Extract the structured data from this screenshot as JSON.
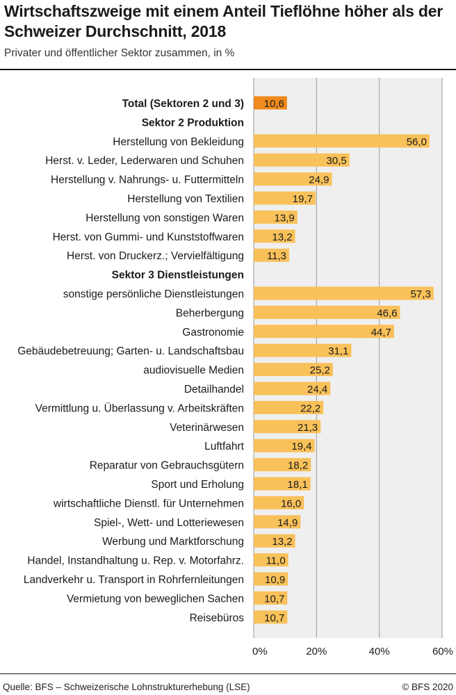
{
  "title": "Wirtschaftszweige mit einem Anteil Tieflöhne höher als der Schweizer Durchschnitt, 2018",
  "subtitle": "Privater und öffentlicher Sektor zusammen, in %",
  "footer": {
    "source": "Quelle: BFS – Schweizerische Lohnstrukturerhebung (LSE)",
    "copyright": "© BFS 2020"
  },
  "colors": {
    "bar": "#f9c15a",
    "bar_highlight": "#f08a1c",
    "background": "#efefef",
    "grid": "#9a9a9a",
    "text": "#1a1a1a"
  },
  "chart_data": {
    "type": "bar",
    "orientation": "horizontal",
    "xlim": [
      0,
      60
    ],
    "ticks": [
      0,
      20,
      40,
      60
    ],
    "tick_labels": [
      "0%",
      "20%",
      "40%",
      "60%"
    ],
    "grid": true,
    "rows": [
      {
        "kind": "bar",
        "label": "Total (Sektoren 2 und 3)",
        "value": 10.6,
        "display": "10,6",
        "highlight": true
      },
      {
        "kind": "header",
        "label": "Sektor 2 Produktion"
      },
      {
        "kind": "bar",
        "label": "Herstellung von Bekleidung",
        "value": 56.0,
        "display": "56,0"
      },
      {
        "kind": "bar",
        "label": "Herst. v. Leder, Lederwaren und Schuhen",
        "value": 30.5,
        "display": "30,5"
      },
      {
        "kind": "bar",
        "label": "Herstellung v. Nahrungs- u. Futtermitteln",
        "value": 24.9,
        "display": "24,9"
      },
      {
        "kind": "bar",
        "label": "Herstellung von Textilien",
        "value": 19.7,
        "display": "19,7"
      },
      {
        "kind": "bar",
        "label": "Herstellung von sonstigen Waren",
        "value": 13.9,
        "display": "13,9"
      },
      {
        "kind": "bar",
        "label": "Herst. von Gummi- und Kunststoffwaren",
        "value": 13.2,
        "display": "13,2"
      },
      {
        "kind": "bar",
        "label": "Herst. von Druckerz.; Vervielfältigung",
        "value": 11.3,
        "display": "11,3"
      },
      {
        "kind": "header",
        "label": "Sektor 3 Dienstleistungen"
      },
      {
        "kind": "bar",
        "label": "sonstige persönliche Dienstleistungen",
        "value": 57.3,
        "display": "57,3"
      },
      {
        "kind": "bar",
        "label": "Beherbergung",
        "value": 46.6,
        "display": "46,6"
      },
      {
        "kind": "bar",
        "label": "Gastronomie",
        "value": 44.7,
        "display": "44,7"
      },
      {
        "kind": "bar",
        "label": "Gebäudebetreuung; Garten- u. Landschaftsbau",
        "value": 31.1,
        "display": "31,1"
      },
      {
        "kind": "bar",
        "label": "audiovisuelle Medien",
        "value": 25.2,
        "display": "25,2"
      },
      {
        "kind": "bar",
        "label": "Detailhandel",
        "value": 24.4,
        "display": "24,4"
      },
      {
        "kind": "bar",
        "label": "Vermittlung u. Überlassung v. Arbeitskräften",
        "value": 22.2,
        "display": "22,2"
      },
      {
        "kind": "bar",
        "label": "Veterinärwesen",
        "value": 21.3,
        "display": "21,3"
      },
      {
        "kind": "bar",
        "label": "Luftfahrt",
        "value": 19.4,
        "display": "19,4"
      },
      {
        "kind": "bar",
        "label": "Reparatur von Gebrauchsgütern",
        "value": 18.2,
        "display": "18,2"
      },
      {
        "kind": "bar",
        "label": "Sport und Erholung",
        "value": 18.1,
        "display": "18,1"
      },
      {
        "kind": "bar",
        "label": "wirtschaftliche Dienstl. für Unternehmen",
        "value": 16.0,
        "display": "16,0"
      },
      {
        "kind": "bar",
        "label": "Spiel-, Wett- und Lotteriewesen",
        "value": 14.9,
        "display": "14,9"
      },
      {
        "kind": "bar",
        "label": "Werbung und Marktforschung",
        "value": 13.2,
        "display": "13,2"
      },
      {
        "kind": "bar",
        "label": "Handel, Instandhaltung u. Rep. v. Motorfahrz.",
        "value": 11.0,
        "display": "11,0"
      },
      {
        "kind": "bar",
        "label": "Landverkehr u. Transport in Rohrfernleitungen",
        "value": 10.9,
        "display": "10,9"
      },
      {
        "kind": "bar",
        "label": "Vermietung von beweglichen Sachen",
        "value": 10.7,
        "display": "10,7"
      },
      {
        "kind": "bar",
        "label": "Reisebüros",
        "value": 10.7,
        "display": "10,7"
      }
    ]
  }
}
